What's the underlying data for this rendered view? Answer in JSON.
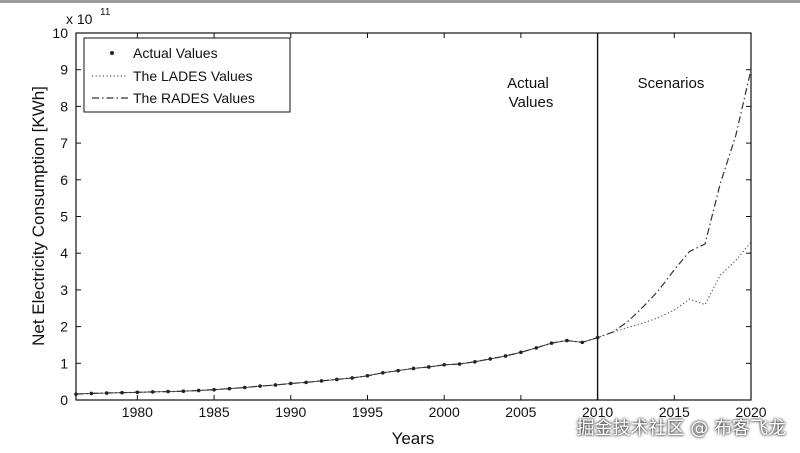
{
  "chart_data": {
    "type": "line",
    "xlabel": "Years",
    "ylabel": "Net Electricity Consumption [KWh]",
    "y_multiplier": "× 10^11",
    "y_multiplier_base": "x 10",
    "y_multiplier_exp": "11",
    "xlim": [
      1976,
      2020
    ],
    "ylim": [
      0,
      10
    ],
    "x_ticks": [
      1980,
      1985,
      1990,
      1995,
      2000,
      2005,
      2010,
      2015,
      2020
    ],
    "y_ticks": [
      0,
      1,
      2,
      3,
      4,
      5,
      6,
      7,
      8,
      9,
      10
    ],
    "grid": false,
    "legend_position": "top-left",
    "legend": [
      "Actual Values",
      "The LADES Values",
      "The RADES Values"
    ],
    "annotations": {
      "actual_line1": "Actual",
      "actual_line2": "Values",
      "scenarios": "Scenarios"
    },
    "divider_x": 2010,
    "series": [
      {
        "name": "Actual Values",
        "style": "marker",
        "x": [
          1976,
          1977,
          1978,
          1979,
          1980,
          1981,
          1982,
          1983,
          1984,
          1985,
          1986,
          1987,
          1988,
          1989,
          1990,
          1991,
          1992,
          1993,
          1994,
          1995,
          1996,
          1997,
          1998,
          1999,
          2000,
          2001,
          2002,
          2003,
          2004,
          2005,
          2006,
          2007,
          2008,
          2009,
          2010
        ],
        "values": [
          0.16,
          0.18,
          0.19,
          0.2,
          0.21,
          0.22,
          0.23,
          0.24,
          0.26,
          0.28,
          0.31,
          0.34,
          0.38,
          0.41,
          0.45,
          0.48,
          0.52,
          0.56,
          0.6,
          0.66,
          0.74,
          0.8,
          0.86,
          0.9,
          0.96,
          0.98,
          1.04,
          1.12,
          1.2,
          1.3,
          1.42,
          1.55,
          1.62,
          1.57,
          1.7
        ]
      },
      {
        "name": "The LADES Values",
        "style": "dotted",
        "x": [
          1976,
          1977,
          1978,
          1979,
          1980,
          1981,
          1982,
          1983,
          1984,
          1985,
          1986,
          1987,
          1988,
          1989,
          1990,
          1991,
          1992,
          1993,
          1994,
          1995,
          1996,
          1997,
          1998,
          1999,
          2000,
          2001,
          2002,
          2003,
          2004,
          2005,
          2006,
          2007,
          2008,
          2009,
          2010,
          2011,
          2012,
          2013,
          2014,
          2015,
          2016,
          2017,
          2018,
          2019,
          2020
        ],
        "values": [
          0.16,
          0.18,
          0.19,
          0.2,
          0.21,
          0.22,
          0.23,
          0.24,
          0.26,
          0.28,
          0.31,
          0.34,
          0.38,
          0.41,
          0.45,
          0.48,
          0.52,
          0.56,
          0.6,
          0.66,
          0.74,
          0.8,
          0.86,
          0.9,
          0.96,
          0.98,
          1.04,
          1.12,
          1.2,
          1.3,
          1.42,
          1.55,
          1.62,
          1.57,
          1.7,
          1.85,
          1.98,
          2.1,
          2.25,
          2.45,
          2.75,
          2.6,
          3.4,
          3.8,
          4.3
        ]
      },
      {
        "name": "The RADES Values",
        "style": "dashdot",
        "x": [
          1976,
          1977,
          1978,
          1979,
          1980,
          1981,
          1982,
          1983,
          1984,
          1985,
          1986,
          1987,
          1988,
          1989,
          1990,
          1991,
          1992,
          1993,
          1994,
          1995,
          1996,
          1997,
          1998,
          1999,
          2000,
          2001,
          2002,
          2003,
          2004,
          2005,
          2006,
          2007,
          2008,
          2009,
          2010,
          2011,
          2012,
          2013,
          2014,
          2015,
          2016,
          2017,
          2018,
          2019,
          2020
        ],
        "values": [
          0.16,
          0.18,
          0.19,
          0.2,
          0.21,
          0.22,
          0.23,
          0.24,
          0.26,
          0.28,
          0.31,
          0.34,
          0.38,
          0.41,
          0.45,
          0.48,
          0.52,
          0.56,
          0.6,
          0.66,
          0.74,
          0.8,
          0.86,
          0.9,
          0.96,
          0.98,
          1.04,
          1.12,
          1.2,
          1.3,
          1.42,
          1.55,
          1.62,
          1.57,
          1.7,
          1.85,
          2.15,
          2.55,
          3.0,
          3.55,
          4.05,
          4.25,
          5.9,
          7.2,
          9.0
        ]
      }
    ]
  },
  "watermark": "掘金技术社区 @ 布客飞龙",
  "colors": {
    "background": "#ffffff",
    "ink": "#111111",
    "top_bar": "#9a9a9a"
  }
}
